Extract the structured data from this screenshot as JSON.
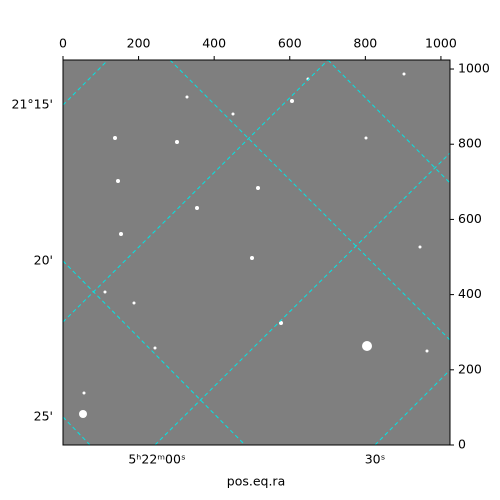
{
  "chart_data": {
    "type": "image",
    "xlabel": "pos.eq.ra",
    "xlim": [
      0,
      1024
    ],
    "xticks": [
      0,
      200,
      400,
      600,
      800,
      1000
    ],
    "ylim": [
      0,
      1024
    ],
    "yticks": [
      0,
      200,
      400,
      600,
      800,
      1000
    ],
    "left_labels": [
      "21°15'",
      "20'",
      "25'"
    ],
    "bottom_labels": [
      "5ʰ22ᵐ00ˢ",
      "30ˢ"
    ]
  }
}
